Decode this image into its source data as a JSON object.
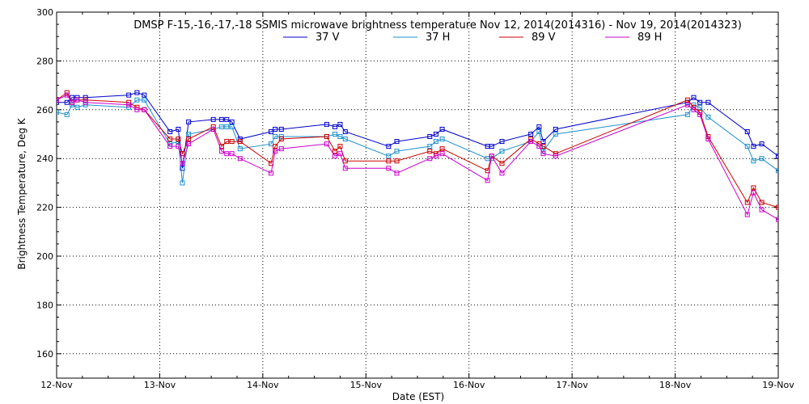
{
  "chart_data": {
    "type": "line",
    "title": "DMSP F-15,-16,-17,-18 SSMIS microwave brightness temperature Nov 12, 2014(2014316) - Nov 19, 2014(2014323)",
    "xlabel": "Date (EST)",
    "ylabel": "Brightness Temperature, Deg K",
    "ylim": [
      150,
      300
    ],
    "yticks": [
      160,
      180,
      200,
      220,
      240,
      260,
      280,
      300
    ],
    "xlim": [
      0,
      7
    ],
    "xticks": [
      0,
      1,
      2,
      3,
      4,
      5,
      6,
      7
    ],
    "xtick_labels": [
      "12-Nov",
      "13-Nov",
      "14-Nov",
      "15-Nov",
      "16-Nov",
      "17-Nov",
      "18-Nov",
      "19-Nov"
    ],
    "grid": true,
    "legend_position": "top-center",
    "x": [
      0.0,
      0.1,
      0.15,
      0.2,
      0.28,
      0.7,
      0.78,
      0.85,
      1.1,
      1.18,
      1.22,
      1.28,
      1.52,
      1.6,
      1.65,
      1.7,
      1.78,
      2.08,
      2.12,
      2.18,
      2.62,
      2.7,
      2.75,
      2.8,
      3.22,
      3.3,
      3.62,
      3.68,
      3.74,
      4.18,
      4.22,
      4.32,
      4.6,
      4.68,
      4.72,
      4.84,
      6.12,
      6.18,
      6.24,
      6.32,
      6.7,
      6.76,
      6.84,
      7.0
    ],
    "series": [
      {
        "name": "37 V",
        "color": "#0000cc",
        "values": [
          263,
          263,
          265,
          265,
          265,
          266,
          267,
          266,
          251,
          252,
          236,
          255,
          256,
          256,
          256,
          255,
          248,
          251,
          252,
          252,
          254,
          253,
          254,
          251,
          245,
          247,
          249,
          250,
          252,
          245,
          245,
          247,
          250,
          253,
          247,
          252,
          263,
          265,
          263,
          263,
          251,
          245,
          246,
          241
        ]
      },
      {
        "name": "37 H",
        "color": "#1e90d0",
        "values": [
          259,
          258,
          262,
          261,
          262,
          261,
          264,
          264,
          246,
          247,
          230,
          250,
          252,
          253,
          253,
          253,
          244,
          246,
          249,
          249,
          249,
          250,
          249,
          248,
          241,
          243,
          245,
          247,
          248,
          240,
          240,
          243,
          247,
          251,
          243,
          250,
          258,
          262,
          261,
          257,
          245,
          239,
          240,
          235
        ]
      },
      {
        "name": "89 V",
        "color": "#cc0000",
        "values": [
          264,
          267,
          263,
          264,
          264,
          263,
          261,
          260,
          248,
          248,
          242,
          248,
          253,
          245,
          247,
          247,
          247,
          238,
          245,
          248,
          249,
          243,
          245,
          239,
          239,
          239,
          243,
          242,
          244,
          235,
          241,
          238,
          248,
          246,
          245,
          242,
          264,
          261,
          259,
          249,
          222,
          228,
          222,
          220
        ]
      },
      {
        "name": "89 H",
        "color": "#cc00cc",
        "values": [
          264,
          266,
          263,
          264,
          263,
          262,
          260,
          260,
          245,
          245,
          238,
          246,
          252,
          243,
          242,
          242,
          240,
          234,
          243,
          244,
          246,
          241,
          242,
          236,
          236,
          234,
          240,
          241,
          242,
          231,
          241,
          234,
          247,
          245,
          242,
          241,
          262,
          260,
          258,
          248,
          217,
          226,
          219,
          215
        ]
      }
    ]
  }
}
